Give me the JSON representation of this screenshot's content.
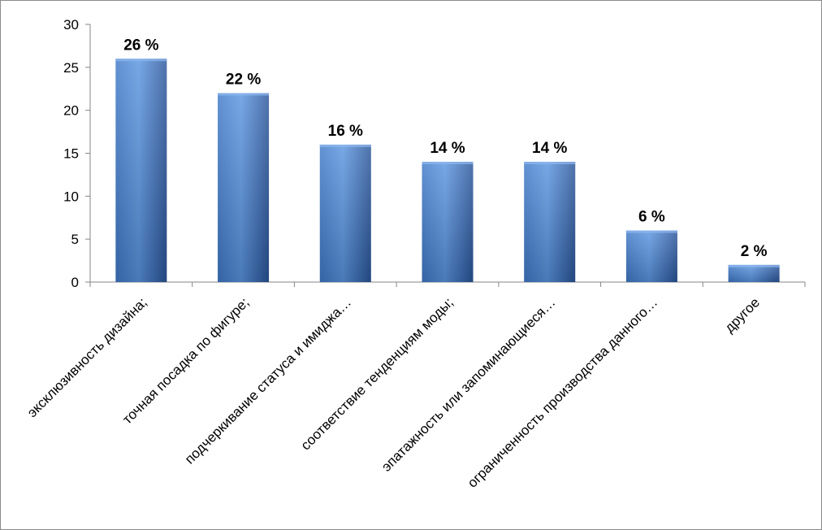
{
  "chart_data": {
    "type": "bar",
    "title": "",
    "xlabel": "",
    "ylabel": "",
    "ylim": [
      0,
      30
    ],
    "yticks": [
      0,
      5,
      10,
      15,
      20,
      25,
      30
    ],
    "grid": false,
    "legend": "none",
    "categories": [
      "эксклюзивность  дизайна;",
      "точная посадка по фигуре;",
      "подчеркивание статуса и имиджа…",
      "соответствие тенденциям моды;",
      "эпатажность или запоминающиеся…",
      "ограниченность производства данного…",
      "другое"
    ],
    "values": [
      26,
      22,
      16,
      14,
      14,
      6,
      2
    ],
    "data_labels": [
      "26 %",
      "22 %",
      "16 %",
      "14 %",
      "14 %",
      "6 %",
      "2 %"
    ],
    "colors": {
      "bar_light": "#5a95e0",
      "bar_mid": "#3f79c8",
      "bar_dark": "#2a5599",
      "axis": "#868686"
    }
  }
}
